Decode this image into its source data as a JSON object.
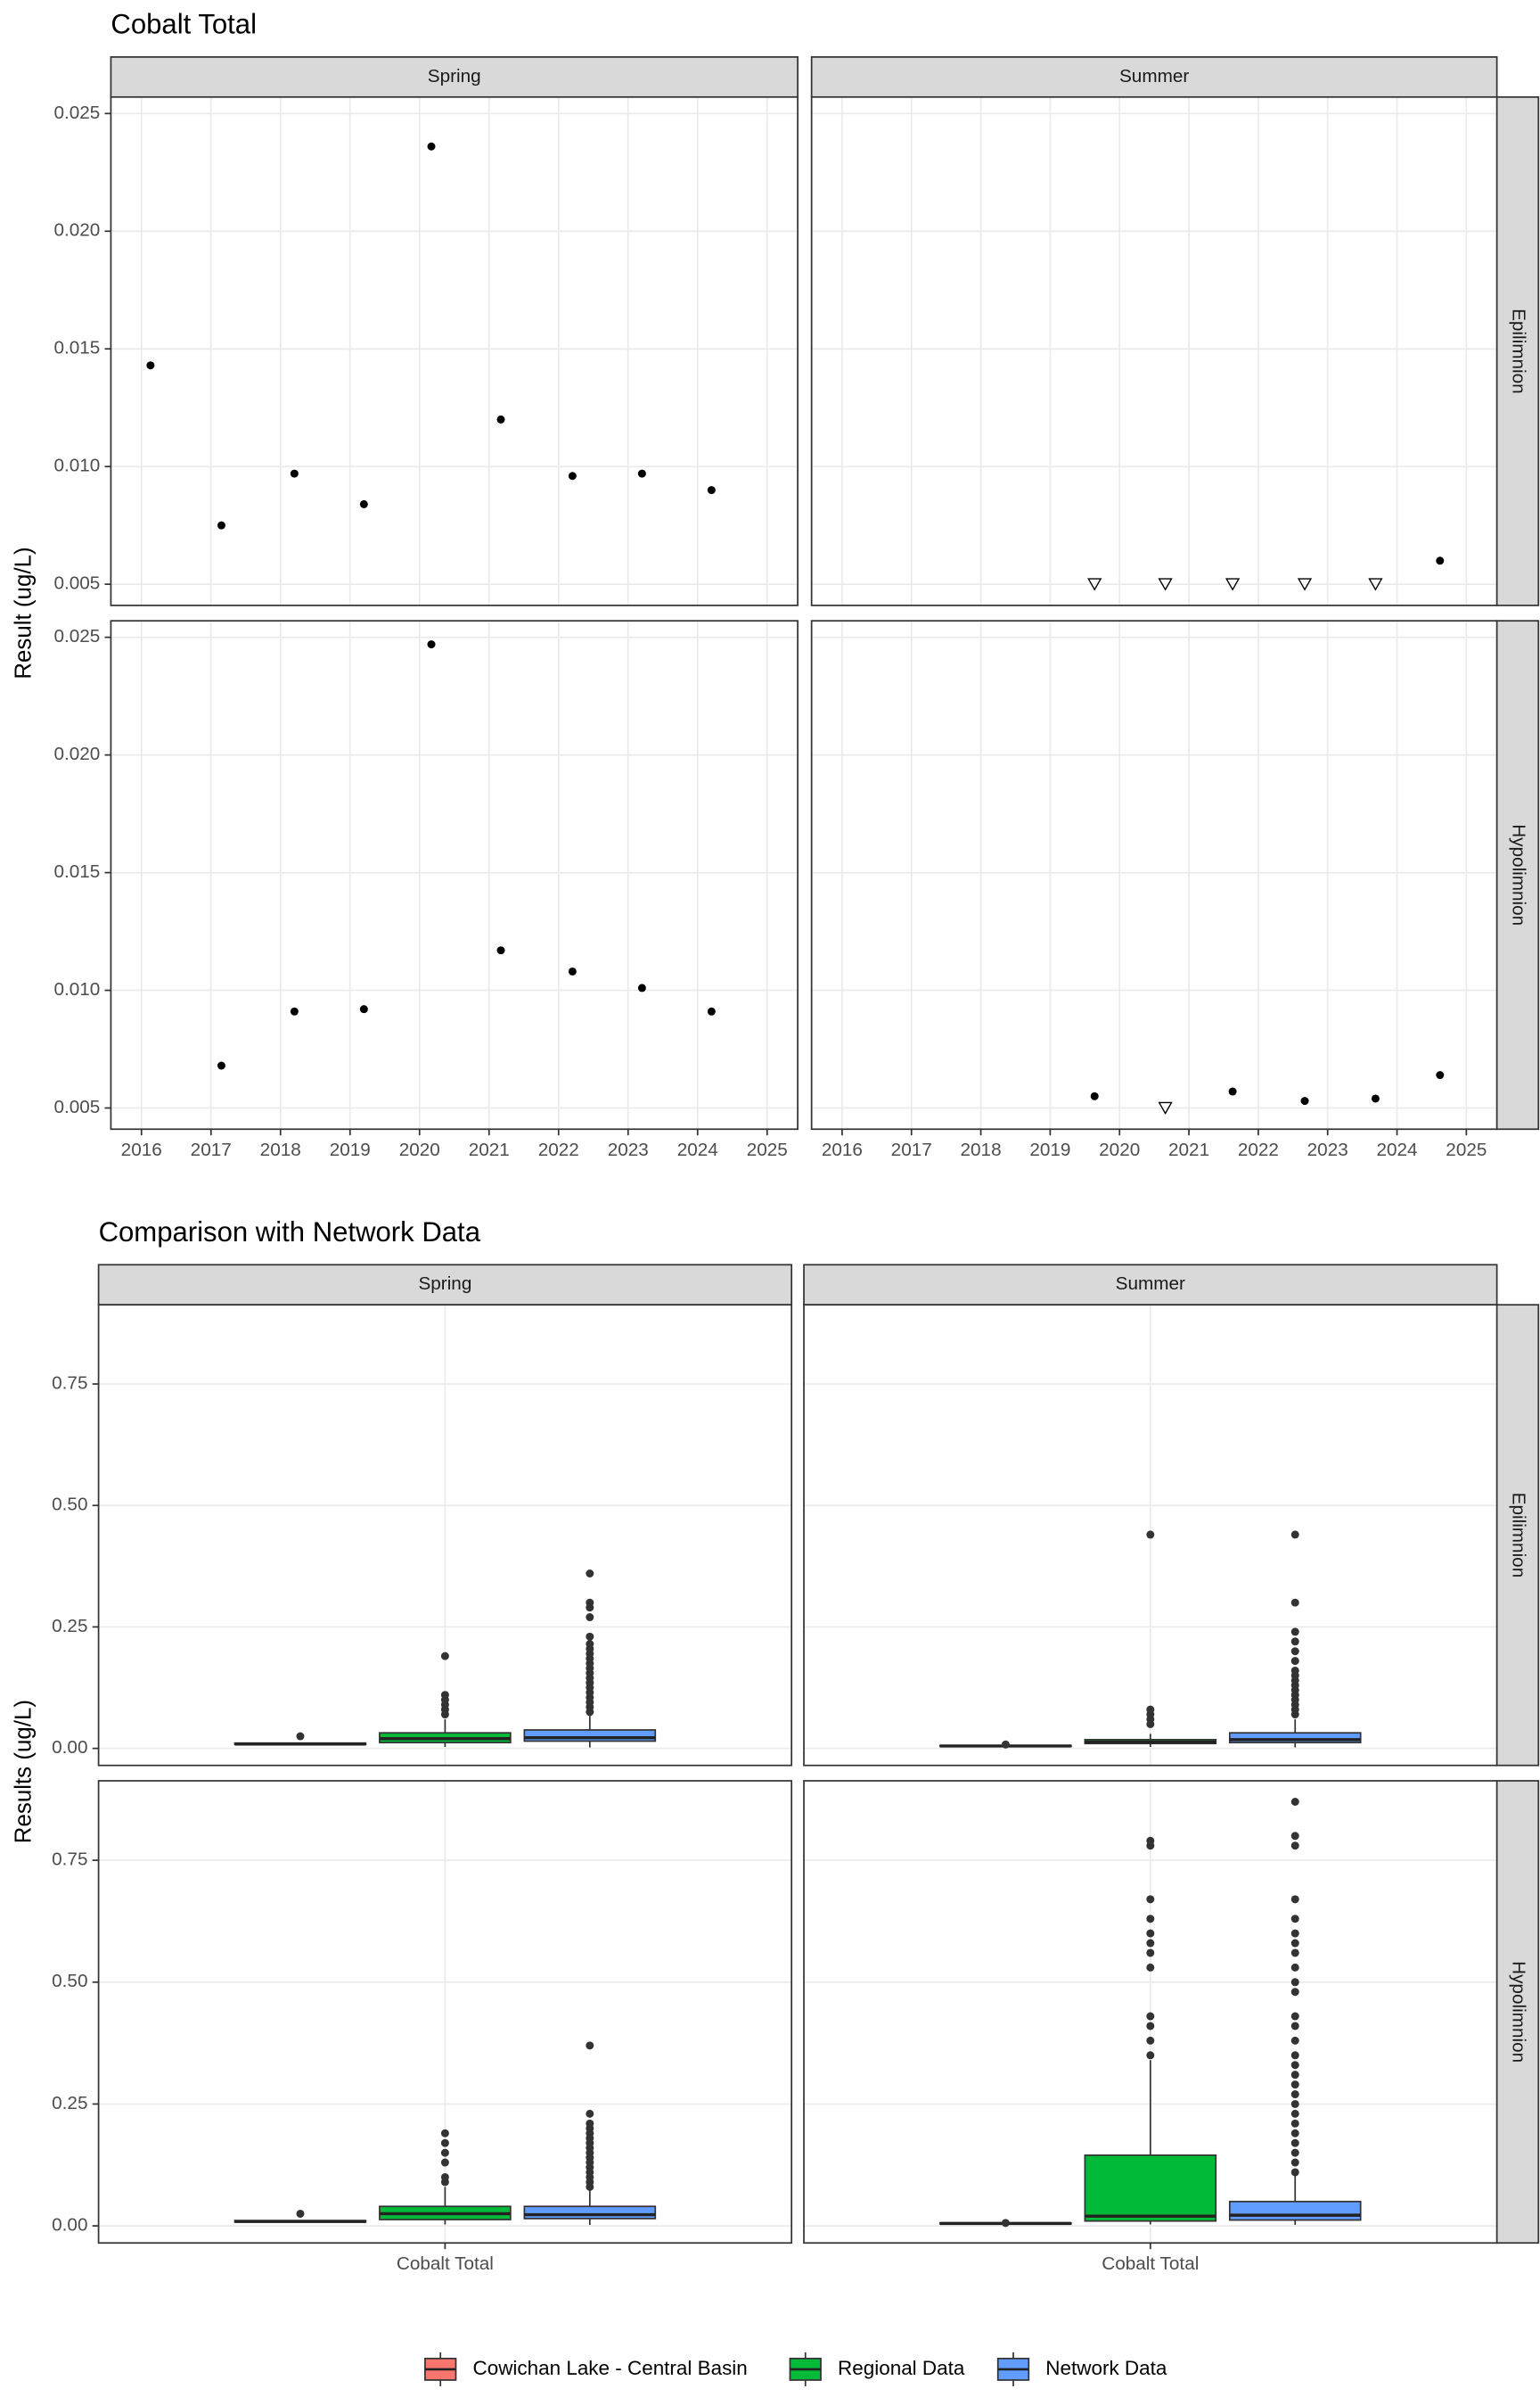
{
  "chart_data": [
    {
      "type": "scatter",
      "title": "Cobalt Total",
      "y_label": "Result (ug/L)",
      "columns": [
        "Spring",
        "Summer"
      ],
      "rows": [
        "Epilimnion",
        "Hypolimnion"
      ],
      "xlim": [
        2015.56,
        2025.44
      ],
      "xticks": [
        2016,
        2017,
        2018,
        2019,
        2020,
        2021,
        2022,
        2023,
        2024,
        2025
      ],
      "ylim": [
        0.0041,
        0.0257
      ],
      "yticks": [
        0.005,
        {
          "value": 0.01,
          "label": "0.010"
        },
        0.015,
        {
          "value": 0.02,
          "label": "0.020"
        },
        0.025
      ],
      "grid": true,
      "color": "#000000",
      "panels": [
        [
          {
            "detected": {
              "x": [
                2016.13,
                2017.15,
                2018.2,
                2019.2,
                2020.17,
                2021.17,
                2022.2,
                2023.2,
                2024.2
              ],
              "values": [
                0.0143,
                0.0075,
                0.0097,
                0.0084,
                0.0236,
                0.012,
                0.0096,
                0.0097,
                0.009
              ]
            }
          },
          {
            "detected": {
              "x": [
                2024.62
              ],
              "values": [
                0.006
              ]
            },
            "below_detection": {
              "x": [
                2019.64,
                2020.66,
                2021.63,
                2022.67,
                2023.69
              ],
              "values": [
                0.005,
                0.005,
                0.005,
                0.005,
                0.005
              ]
            }
          }
        ],
        [
          {
            "detected": {
              "x": [
                2017.15,
                2018.2,
                2019.2,
                2020.17,
                2021.17,
                2022.2,
                2023.2,
                2024.2
              ],
              "values": [
                0.0068,
                0.0091,
                0.0092,
                0.0247,
                0.0117,
                0.0108,
                0.0101,
                0.0091
              ]
            }
          },
          {
            "detected": {
              "x": [
                2019.64,
                2021.63,
                2022.67,
                2023.69,
                2024.62
              ],
              "values": [
                0.0055,
                0.0057,
                0.0053,
                0.0054,
                0.0064
              ]
            },
            "below_detection": {
              "x": [
                2020.66
              ],
              "values": [
                0.005
              ]
            }
          }
        ]
      ]
    },
    {
      "type": "box",
      "title": "Comparison with Network Data",
      "y_label": "Results (ug/L)",
      "columns": [
        "Spring",
        "Summer"
      ],
      "rows": [
        "Epilimnion",
        "Hypolimnion"
      ],
      "categories": [
        "Cobalt Total"
      ],
      "ylim": [
        -0.035,
        0.913
      ],
      "yticks": [
        {
          "value": 0,
          "label": "0.00"
        },
        0.25,
        {
          "value": 0.5,
          "label": "0.50"
        },
        0.75
      ],
      "grid": true,
      "legend": "bottom",
      "series": [
        {
          "name": "Cowichan Lake - Central Basin",
          "color": "#F8766D"
        },
        {
          "name": "Regional Data",
          "color": "#00BA38"
        },
        {
          "name": "Network Data",
          "color": "#619CFF"
        }
      ],
      "panels": [
        [
          {
            "boxes": [
              {
                "whisker_low": 0.007,
                "q1": 0.008,
                "median": 0.009,
                "q3": 0.011,
                "whisker_high": 0.012,
                "outliers": [
                  0.025
                ]
              },
              {
                "whisker_low": 0.003,
                "q1": 0.012,
                "median": 0.02,
                "q3": 0.032,
                "whisker_high": 0.06,
                "outliers": [
                  0.07,
                  0.08,
                  0.09,
                  0.1,
                  0.11,
                  0.19
                ]
              },
              {
                "whisker_low": 0.002,
                "q1": 0.015,
                "median": 0.022,
                "q3": 0.038,
                "whisker_high": 0.07,
                "outliers": [
                  0.075,
                  0.085,
                  0.095,
                  0.105,
                  0.115,
                  0.125,
                  0.135,
                  0.145,
                  0.155,
                  0.165,
                  0.175,
                  0.185,
                  0.195,
                  0.205,
                  0.215,
                  0.23,
                  0.27,
                  0.29,
                  0.3,
                  0.36
                ]
              }
            ]
          },
          {
            "boxes": [
              {
                "whisker_low": 0.003,
                "q1": 0.004,
                "median": 0.005,
                "q3": 0.006,
                "whisker_high": 0.007,
                "outliers": [
                  0.008
                ]
              },
              {
                "whisker_low": 0.003,
                "q1": 0.01,
                "median": 0.013,
                "q3": 0.018,
                "whisker_high": 0.03,
                "outliers": [
                  0.05,
                  0.06,
                  0.07,
                  0.08,
                  0.44
                ]
              },
              {
                "whisker_low": 0.002,
                "q1": 0.012,
                "median": 0.018,
                "q3": 0.032,
                "whisker_high": 0.06,
                "outliers": [
                  0.07,
                  0.08,
                  0.09,
                  0.1,
                  0.11,
                  0.12,
                  0.13,
                  0.14,
                  0.15,
                  0.16,
                  0.18,
                  0.2,
                  0.22,
                  0.24,
                  0.3,
                  0.44
                ]
              }
            ]
          }
        ],
        [
          {
            "boxes": [
              {
                "whisker_low": 0.007,
                "q1": 0.008,
                "median": 0.009,
                "q3": 0.011,
                "whisker_high": 0.012,
                "outliers": [
                  0.025
                ]
              },
              {
                "whisker_low": 0.003,
                "q1": 0.013,
                "median": 0.025,
                "q3": 0.04,
                "whisker_high": 0.08,
                "outliers": [
                  0.09,
                  0.1,
                  0.13,
                  0.15,
                  0.17,
                  0.19
                ]
              },
              {
                "whisker_low": 0.002,
                "q1": 0.015,
                "median": 0.023,
                "q3": 0.04,
                "whisker_high": 0.075,
                "outliers": [
                  0.08,
                  0.09,
                  0.1,
                  0.11,
                  0.12,
                  0.13,
                  0.14,
                  0.15,
                  0.16,
                  0.17,
                  0.18,
                  0.19,
                  0.2,
                  0.21,
                  0.23,
                  0.37
                ]
              }
            ]
          },
          {
            "boxes": [
              {
                "whisker_low": 0.003,
                "q1": 0.004,
                "median": 0.005,
                "q3": 0.006,
                "whisker_high": 0.007,
                "outliers": [
                  0.006
                ]
              },
              {
                "whisker_low": 0.003,
                "q1": 0.01,
                "median": 0.02,
                "q3": 0.145,
                "whisker_high": 0.34,
                "outliers": [
                  0.35,
                  0.38,
                  0.41,
                  0.43,
                  0.53,
                  0.56,
                  0.58,
                  0.6,
                  0.63,
                  0.67,
                  0.78,
                  0.79
                ]
              },
              {
                "whisker_low": 0.002,
                "q1": 0.012,
                "median": 0.022,
                "q3": 0.05,
                "whisker_high": 0.107,
                "outliers": [
                  0.11,
                  0.13,
                  0.15,
                  0.17,
                  0.19,
                  0.21,
                  0.23,
                  0.25,
                  0.27,
                  0.29,
                  0.31,
                  0.33,
                  0.35,
                  0.38,
                  0.41,
                  0.43,
                  0.48,
                  0.5,
                  0.53,
                  0.56,
                  0.58,
                  0.6,
                  0.63,
                  0.67,
                  0.78,
                  0.8,
                  0.87
                ]
              }
            ]
          }
        ]
      ]
    }
  ]
}
